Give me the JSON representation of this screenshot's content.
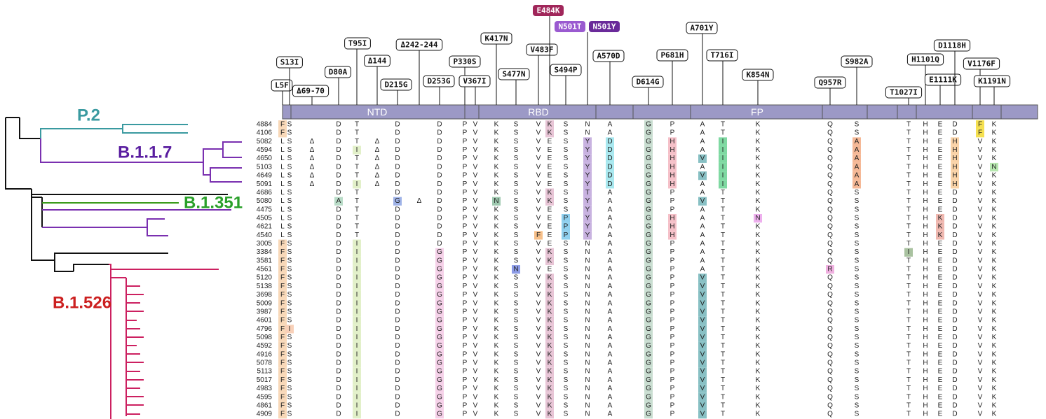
{
  "domains": [
    "NTD",
    "RBD",
    "FP"
  ],
  "clades": [
    {
      "name": "P.2",
      "color": "#3a9aa0"
    },
    {
      "name": "B.1.1.7",
      "color": "#5a1ea0"
    },
    {
      "name": "B.1.351",
      "color": "#2aa02a"
    },
    {
      "name": "B.1.526",
      "color": "#cc2020"
    }
  ],
  "columns": [
    {
      "labels": [
        "L5F"
      ],
      "color": "#f8d8b8"
    },
    {
      "labels": [
        "S13I"
      ],
      "color": "#f8d0b8"
    },
    {
      "labels": [
        "Δ69-70"
      ],
      "color": null
    },
    {
      "labels": [
        "D80A"
      ],
      "color": "#b9dcc8"
    },
    {
      "labels": [
        "T95I"
      ],
      "color": "#e2f0c9"
    },
    {
      "labels": [
        "Δ144"
      ],
      "color": null
    },
    {
      "labels": [
        "D215G"
      ],
      "color": "#9fb3e8"
    },
    {
      "labels": [
        "Δ242-244"
      ],
      "color": null
    },
    {
      "labels": [
        "D253G"
      ],
      "color": "#f5d0e8"
    },
    {
      "labels": [
        "P330S"
      ],
      "color": "#f5e878"
    },
    {
      "labels": [
        "V367I"
      ],
      "color": "#d0d0d0"
    },
    {
      "labels": [
        "K417N"
      ],
      "color": "#9fc9b0"
    },
    {
      "labels": [
        "S477N"
      ],
      "color": "#8c9be6"
    },
    {
      "labels": [
        "V483F"
      ],
      "color": "#f7c08a"
    },
    {
      "labels": [
        "E484K"
      ],
      "color": "#e8c5d6"
    },
    {
      "labels": [
        "S494P"
      ],
      "color": "#8fd0ef"
    },
    {
      "labels": [
        "N501T",
        "N501Y"
      ],
      "color": "#c8b2e0"
    },
    {
      "labels": [
        "A570D"
      ],
      "color": "#a8e8ef"
    },
    {
      "labels": [
        "D614G"
      ],
      "color": "#c8ddd0"
    },
    {
      "labels": [
        "P681H"
      ],
      "color": "#f5c0c8"
    },
    {
      "labels": [
        "A701Y"
      ],
      "color": "#88c0c4"
    },
    {
      "labels": [
        "T716I"
      ],
      "color": "#7fd9a2"
    },
    {
      "labels": [
        "K854N"
      ],
      "color": "#eeb0ee"
    },
    {
      "labels": [
        "Q957R"
      ],
      "color": "#f0b0e0"
    },
    {
      "labels": [
        "S982A"
      ],
      "color": "#f5b896"
    },
    {
      "labels": [
        "T1027I"
      ],
      "color": "#a9c2a0"
    },
    {
      "labels": [
        "H1101Q"
      ],
      "color": "#d0d0d0"
    },
    {
      "labels": [
        "E1111K"
      ],
      "color": "#f0b8b0"
    },
    {
      "labels": [
        "D1118H"
      ],
      "color": "#fad3a8"
    },
    {
      "labels": [
        "V1176F"
      ],
      "color": "#f5e050"
    },
    {
      "labels": [
        "K1191N"
      ],
      "color": "#b8e8b0"
    }
  ],
  "rows": [
    {
      "id": "4884",
      "cells": [
        "F",
        "S",
        null,
        "D",
        "T",
        null,
        "D",
        null,
        "D",
        "P",
        "V",
        "K",
        "S",
        "V",
        "K",
        "S",
        "N",
        "A",
        "G",
        "P",
        "A",
        "T",
        "K",
        "Q",
        "S",
        "T",
        "H",
        "E",
        "D",
        "F",
        "K"
      ]
    },
    {
      "id": "4106",
      "cells": [
        "F",
        "S",
        null,
        "D",
        "T",
        null,
        "D",
        null,
        "D",
        "P",
        "V",
        "K",
        "S",
        "V",
        "K",
        "S",
        "N",
        "A",
        "G",
        "P",
        "A",
        "T",
        "K",
        "Q",
        "S",
        "T",
        "H",
        "E",
        "D",
        "F",
        "K"
      ]
    },
    {
      "id": "5082",
      "cells": [
        "L",
        "S",
        "Δ",
        "D",
        "T",
        "Δ",
        "D",
        null,
        "D",
        "P",
        "V",
        "K",
        "S",
        "V",
        "E",
        "S",
        "Y",
        "D",
        "G",
        "H",
        "A",
        "I",
        "K",
        "Q",
        "A",
        "T",
        "H",
        "E",
        "H",
        "V",
        "K"
      ]
    },
    {
      "id": "4594",
      "cells": [
        "L",
        "S",
        "Δ",
        "D",
        "I",
        "Δ",
        "D",
        null,
        "D",
        "P",
        "V",
        "K",
        "S",
        "V",
        "E",
        "S",
        "Y",
        "D",
        "G",
        "H",
        "A",
        "I",
        "K",
        "Q",
        "A",
        "T",
        "H",
        "E",
        "H",
        "V",
        "K"
      ]
    },
    {
      "id": "4650",
      "cells": [
        "L",
        "S",
        "Δ",
        "D",
        "T",
        "Δ",
        "D",
        null,
        "D",
        "P",
        "V",
        "K",
        "S",
        "V",
        "E",
        "S",
        "Y",
        "D",
        "G",
        "H",
        "V",
        "I",
        "K",
        "Q",
        "A",
        "T",
        "H",
        "E",
        "H",
        "V",
        "K"
      ]
    },
    {
      "id": "5103",
      "cells": [
        "L",
        "S",
        "Δ",
        "D",
        "T",
        "Δ",
        "D",
        null,
        "D",
        "P",
        "V",
        "K",
        "S",
        "V",
        "E",
        "S",
        "Y",
        "D",
        "G",
        "H",
        "A",
        "I",
        "K",
        "Q",
        "A",
        "T",
        "H",
        "E",
        "H",
        "V",
        "N"
      ]
    },
    {
      "id": "4649",
      "cells": [
        "L",
        "S",
        "Δ",
        "D",
        "T",
        "Δ",
        "D",
        null,
        "D",
        "P",
        "V",
        "K",
        "S",
        "V",
        "E",
        "S",
        "Y",
        "D",
        "G",
        "H",
        "V",
        "I",
        "K",
        "Q",
        "A",
        "T",
        "H",
        "E",
        "H",
        "V",
        "K"
      ]
    },
    {
      "id": "5091",
      "cells": [
        "L",
        "S",
        "Δ",
        "D",
        "I",
        "Δ",
        "D",
        null,
        "D",
        "P",
        "V",
        "K",
        "S",
        "V",
        "E",
        "S",
        "Y",
        "D",
        "G",
        "H",
        "A",
        "I",
        "K",
        "Q",
        "A",
        "T",
        "H",
        "E",
        "H",
        "V",
        "K"
      ]
    },
    {
      "id": "4686",
      "cells": [
        "L",
        "S",
        null,
        "D",
        "T",
        null,
        "D",
        null,
        "D",
        "P",
        "V",
        "K",
        "S",
        "V",
        "K",
        "S",
        "T",
        "A",
        "G",
        "P",
        "A",
        "T",
        "K",
        "Q",
        "S",
        "T",
        "H",
        "E",
        "D",
        "V",
        "K"
      ]
    },
    {
      "id": "5080",
      "cells": [
        "L",
        "S",
        null,
        "A",
        "T",
        null,
        "G",
        "Δ",
        "D",
        "P",
        "V",
        "N",
        "S",
        "V",
        "K",
        "S",
        "Y",
        "A",
        "G",
        "P",
        "V",
        "T",
        "K",
        "Q",
        "S",
        "T",
        "H",
        "E",
        "D",
        "V",
        "K"
      ]
    },
    {
      "id": "4475",
      "cells": [
        "L",
        "S",
        null,
        "D",
        "T",
        null,
        "D",
        null,
        "D",
        "P",
        "V",
        "K",
        "S",
        "V",
        "E",
        "S",
        "Y",
        "A",
        "G",
        "P",
        "A",
        "T",
        "K",
        "Q",
        "S",
        "T",
        "H",
        "E",
        "D",
        "V",
        "K"
      ]
    },
    {
      "id": "4505",
      "cells": [
        "L",
        "S",
        null,
        "D",
        "T",
        null,
        "D",
        null,
        "D",
        "P",
        "V",
        "K",
        "S",
        "V",
        "E",
        "P",
        "Y",
        "A",
        "G",
        "H",
        "A",
        "T",
        "N",
        "Q",
        "S",
        "T",
        "H",
        "K",
        "D",
        "V",
        "K"
      ]
    },
    {
      "id": "4621",
      "cells": [
        "L",
        "S",
        null,
        "D",
        "T",
        null,
        "D",
        null,
        "D",
        "P",
        "V",
        "K",
        "S",
        "V",
        "E",
        "P",
        "Y",
        "A",
        "G",
        "H",
        "A",
        "T",
        "K",
        "Q",
        "S",
        "T",
        "H",
        "K",
        "D",
        "V",
        "K"
      ]
    },
    {
      "id": "4540",
      "cells": [
        "L",
        "S",
        null,
        "D",
        "T",
        null,
        "D",
        null,
        "D",
        "P",
        "V",
        "K",
        "S",
        "F",
        "E",
        "P",
        "Y",
        "A",
        "G",
        "H",
        "A",
        "T",
        "K",
        "Q",
        "S",
        "T",
        "H",
        "K",
        "D",
        "V",
        "K"
      ]
    },
    {
      "id": "3005",
      "cells": [
        "F",
        "S",
        null,
        "D",
        "I",
        null,
        "D",
        null,
        "D",
        "P",
        "V",
        "K",
        "S",
        "V",
        "E",
        "S",
        "N",
        "A",
        "G",
        "P",
        "A",
        "T",
        "K",
        "Q",
        "S",
        "T",
        "H",
        "E",
        "D",
        "V",
        "K"
      ]
    },
    {
      "id": "3384",
      "cells": [
        "F",
        "S",
        null,
        "D",
        "I",
        null,
        "D",
        null,
        "G",
        "P",
        "V",
        "K",
        "S",
        "V",
        "K",
        "S",
        "N",
        "A",
        "G",
        "P",
        "A",
        "T",
        "K",
        "Q",
        "S",
        "I",
        "H",
        "E",
        "D",
        "V",
        "K"
      ]
    },
    {
      "id": "3581",
      "cells": [
        "F",
        "S",
        null,
        "D",
        "I",
        null,
        "D",
        null,
        "G",
        "P",
        "V",
        "K",
        "S",
        "V",
        "K",
        "S",
        "N",
        "A",
        "G",
        "P",
        "A",
        "T",
        "K",
        "Q",
        "S",
        "T",
        "H",
        "E",
        "D",
        "V",
        "K"
      ]
    },
    {
      "id": "4561",
      "cells": [
        "F",
        "S",
        null,
        "D",
        "I",
        null,
        "D",
        null,
        "G",
        "P",
        "V",
        "K",
        "N",
        "V",
        "E",
        "S",
        "N",
        "A",
        "G",
        "P",
        "A",
        "T",
        "K",
        "R",
        "S",
        "T",
        "H",
        "E",
        "D",
        "V",
        "K"
      ]
    },
    {
      "id": "5120",
      "cells": [
        "F",
        "S",
        null,
        "D",
        "I",
        null,
        "D",
        null,
        "G",
        "P",
        "V",
        "K",
        "S",
        "V",
        "K",
        "S",
        "N",
        "A",
        "G",
        "P",
        "V",
        "T",
        "K",
        "Q",
        "S",
        "T",
        "H",
        "E",
        "D",
        "V",
        "K"
      ]
    },
    {
      "id": "5138",
      "cells": [
        "F",
        "S",
        null,
        "D",
        "I",
        null,
        "D",
        null,
        "G",
        "P",
        "V",
        "K",
        "S",
        "V",
        "K",
        "S",
        "N",
        "A",
        "G",
        "P",
        "V",
        "T",
        "K",
        "Q",
        "S",
        "T",
        "H",
        "E",
        "D",
        "V",
        "K"
      ]
    },
    {
      "id": "3698",
      "cells": [
        "F",
        "S",
        null,
        "D",
        "I",
        null,
        "D",
        null,
        "G",
        "P",
        "V",
        "K",
        "S",
        "V",
        "K",
        "S",
        "N",
        "A",
        "G",
        "P",
        "V",
        "T",
        "K",
        "Q",
        "S",
        "T",
        "H",
        "E",
        "D",
        "V",
        "K"
      ]
    },
    {
      "id": "5009",
      "cells": [
        "F",
        "S",
        null,
        "D",
        "I",
        null,
        "D",
        null,
        "G",
        "P",
        "V",
        "K",
        "S",
        "V",
        "K",
        "S",
        "N",
        "A",
        "G",
        "P",
        "V",
        "T",
        "K",
        "Q",
        "S",
        "T",
        "H",
        "E",
        "D",
        "V",
        "K"
      ]
    },
    {
      "id": "3987",
      "cells": [
        "F",
        "S",
        null,
        "D",
        "I",
        null,
        "D",
        null,
        "G",
        "P",
        "V",
        "K",
        "S",
        "V",
        "K",
        "S",
        "N",
        "A",
        "G",
        "P",
        "V",
        "T",
        "K",
        "Q",
        "S",
        "T",
        "H",
        "E",
        "D",
        "V",
        "K"
      ]
    },
    {
      "id": "4601",
      "cells": [
        "F",
        "S",
        null,
        "D",
        "I",
        null,
        "D",
        null,
        "G",
        "P",
        "V",
        "K",
        "S",
        "V",
        "K",
        "S",
        "N",
        "A",
        "G",
        "P",
        "V",
        "T",
        "K",
        "Q",
        "S",
        "T",
        "H",
        "E",
        "D",
        "V",
        "K"
      ]
    },
    {
      "id": "4796",
      "cells": [
        "F",
        "I",
        null,
        "D",
        "I",
        null,
        "D",
        null,
        "G",
        "P",
        "V",
        "K",
        "S",
        "V",
        "K",
        "S",
        "N",
        "A",
        "G",
        "P",
        "V",
        "T",
        "K",
        "Q",
        "S",
        "T",
        "H",
        "E",
        "D",
        "V",
        "K"
      ]
    },
    {
      "id": "5098",
      "cells": [
        "F",
        "S",
        null,
        "D",
        "I",
        null,
        "D",
        null,
        "G",
        "P",
        "V",
        "K",
        "S",
        "V",
        "K",
        "S",
        "N",
        "A",
        "G",
        "P",
        "V",
        "T",
        "K",
        "Q",
        "S",
        "T",
        "H",
        "E",
        "D",
        "V",
        "K"
      ]
    },
    {
      "id": "4592",
      "cells": [
        "F",
        "S",
        null,
        "D",
        "I",
        null,
        "D",
        null,
        "G",
        "P",
        "V",
        "K",
        "S",
        "V",
        "K",
        "S",
        "N",
        "A",
        "G",
        "P",
        "V",
        "T",
        "K",
        "Q",
        "S",
        "T",
        "H",
        "E",
        "D",
        "V",
        "K"
      ]
    },
    {
      "id": "4916",
      "cells": [
        "F",
        "S",
        null,
        "D",
        "I",
        null,
        "D",
        null,
        "G",
        "P",
        "V",
        "K",
        "S",
        "V",
        "K",
        "S",
        "N",
        "A",
        "G",
        "P",
        "V",
        "T",
        "K",
        "Q",
        "S",
        "T",
        "H",
        "E",
        "D",
        "V",
        "K"
      ]
    },
    {
      "id": "5078",
      "cells": [
        "F",
        "S",
        null,
        "D",
        "I",
        null,
        "D",
        null,
        "G",
        "P",
        "V",
        "K",
        "S",
        "V",
        "K",
        "S",
        "N",
        "A",
        "G",
        "P",
        "V",
        "T",
        "K",
        "Q",
        "S",
        "T",
        "H",
        "E",
        "D",
        "V",
        "K"
      ]
    },
    {
      "id": "5113",
      "cells": [
        "F",
        "S",
        null,
        "D",
        "I",
        null,
        "D",
        null,
        "G",
        "P",
        "V",
        "K",
        "S",
        "V",
        "K",
        "S",
        "N",
        "A",
        "G",
        "P",
        "V",
        "T",
        "K",
        "Q",
        "S",
        "T",
        "H",
        "E",
        "D",
        "V",
        "K"
      ]
    },
    {
      "id": "5017",
      "cells": [
        "F",
        "S",
        null,
        "D",
        "I",
        null,
        "D",
        null,
        "G",
        "P",
        "V",
        "K",
        "S",
        "V",
        "K",
        "S",
        "N",
        "A",
        "G",
        "P",
        "V",
        "T",
        "K",
        "Q",
        "S",
        "T",
        "H",
        "E",
        "D",
        "V",
        "K"
      ]
    },
    {
      "id": "4983",
      "cells": [
        "F",
        "S",
        null,
        "D",
        "I",
        null,
        "D",
        null,
        "G",
        "P",
        "V",
        "K",
        "S",
        "V",
        "K",
        "S",
        "N",
        "A",
        "G",
        "P",
        "V",
        "T",
        "K",
        "Q",
        "S",
        "T",
        "H",
        "E",
        "D",
        "V",
        "K"
      ]
    },
    {
      "id": "4595",
      "cells": [
        "F",
        "S",
        null,
        "D",
        "I",
        null,
        "D",
        null,
        "G",
        "P",
        "V",
        "K",
        "S",
        "V",
        "K",
        "S",
        "N",
        "A",
        "G",
        "P",
        "V",
        "T",
        "K",
        "Q",
        "S",
        "T",
        "H",
        "E",
        "D",
        "V",
        "K"
      ]
    },
    {
      "id": "4861",
      "cells": [
        "F",
        "S",
        null,
        "D",
        "I",
        null,
        "D",
        null,
        "G",
        "P",
        "V",
        "K",
        "S",
        "V",
        "K",
        "S",
        "N",
        "A",
        "G",
        "P",
        "V",
        "T",
        "K",
        "Q",
        "S",
        "T",
        "H",
        "E",
        "D",
        "V",
        "K"
      ]
    },
    {
      "id": "4909",
      "cells": [
        "F",
        "S",
        null,
        "D",
        "I",
        null,
        "D",
        null,
        "G",
        "P",
        "V",
        "K",
        "S",
        "V",
        "K",
        "S",
        "N",
        "A",
        "G",
        "P",
        "V",
        "T",
        "K",
        "Q",
        "S",
        "T",
        "H",
        "E",
        "D",
        "V",
        "K"
      ]
    }
  ]
}
